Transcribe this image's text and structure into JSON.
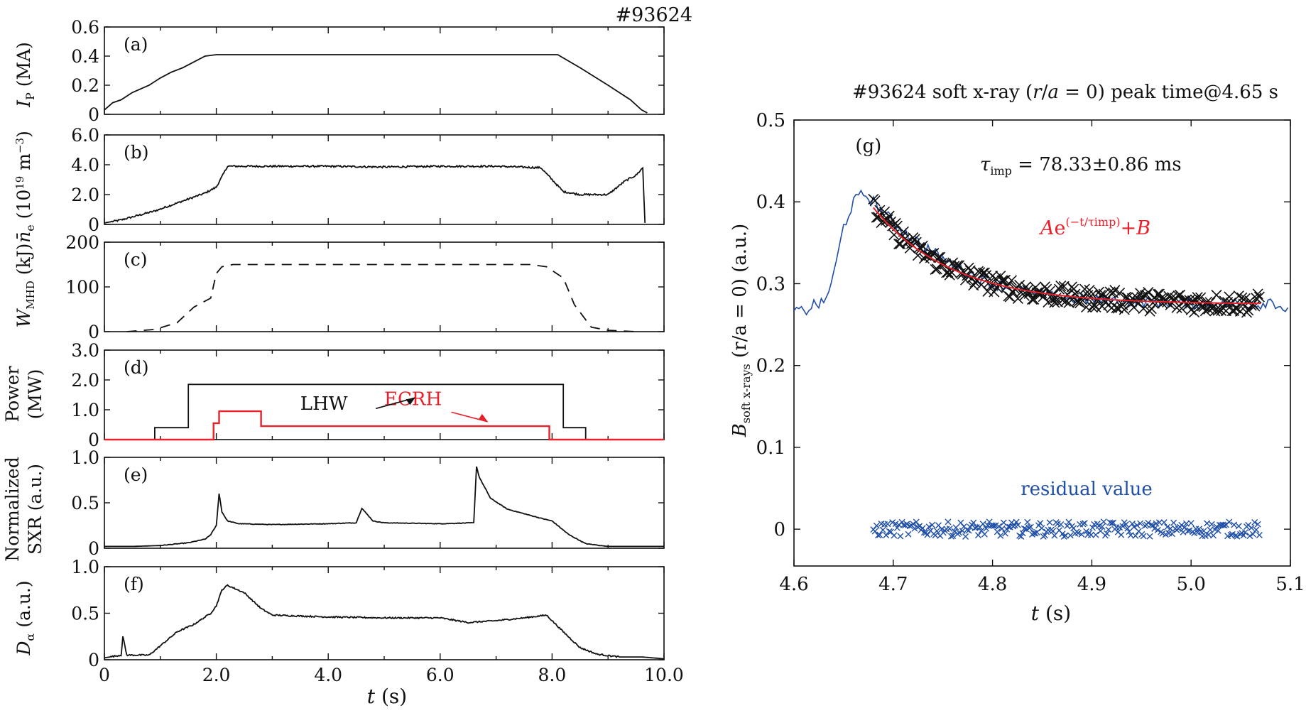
{
  "figure_label": "#93624",
  "colors": {
    "ink": "#111111",
    "ecrh": "#e8202a",
    "blue": "#1f4fa8"
  },
  "chart_data": [
    {
      "id": "a",
      "type": "line",
      "tag": "(a)",
      "ylabel": "I_P (MA)",
      "ylabel_main": "I",
      "ylabel_sub": "P",
      "ylabel_rest": " (MA)",
      "xlim": [
        0,
        10
      ],
      "ylim": [
        0,
        0.6
      ],
      "yticks": [
        "0",
        "0.2",
        "0.4",
        "0.6"
      ],
      "ytick_values": [
        0,
        0.2,
        0.4,
        0.6
      ],
      "series": [
        {
          "name": "I_P",
          "style": "solid",
          "x": [
            0,
            0.15,
            0.3,
            0.5,
            0.8,
            1.0,
            1.2,
            1.4,
            1.6,
            1.8,
            2.0,
            3.0,
            5.0,
            7.0,
            8.1,
            8.5,
            9.0,
            9.4,
            9.6,
            9.7
          ],
          "y": [
            0.03,
            0.08,
            0.1,
            0.15,
            0.2,
            0.25,
            0.29,
            0.32,
            0.36,
            0.4,
            0.41,
            0.41,
            0.41,
            0.41,
            0.41,
            0.32,
            0.2,
            0.1,
            0.03,
            0.01
          ]
        }
      ]
    },
    {
      "id": "b",
      "type": "line",
      "tag": "(b)",
      "ylabel": "n̄_e (10^19 m^-3)",
      "xlim": [
        0,
        10
      ],
      "ylim": [
        0,
        6
      ],
      "yticks": [
        "0",
        "2.0",
        "4.0",
        "6.0"
      ],
      "ytick_values": [
        0,
        2,
        4,
        6
      ],
      "series": [
        {
          "name": "n_e",
          "style": "solid",
          "x": [
            0,
            0.3,
            0.6,
            0.9,
            1.2,
            1.5,
            1.8,
            2.0,
            2.2,
            3.0,
            4.0,
            5.0,
            6.0,
            7.0,
            7.8,
            8.2,
            8.5,
            9.0,
            9.3,
            9.5,
            9.62,
            9.66
          ],
          "y": [
            0.1,
            0.3,
            0.6,
            0.9,
            1.3,
            1.7,
            2.1,
            2.5,
            3.9,
            3.9,
            3.9,
            3.85,
            3.9,
            3.9,
            3.8,
            2.2,
            2.0,
            2.0,
            2.9,
            3.3,
            3.8,
            0.1
          ]
        }
      ]
    },
    {
      "id": "c",
      "type": "line",
      "tag": "(c)",
      "ylabel": "W_MHD (kJ)",
      "xlim": [
        0,
        10
      ],
      "ylim": [
        0,
        200
      ],
      "yticks": [
        "0",
        "100",
        "200"
      ],
      "ytick_values": [
        0,
        100,
        200
      ],
      "series": [
        {
          "name": "W_MHD",
          "style": "dashed",
          "x": [
            0.4,
            0.9,
            1.3,
            1.6,
            1.9,
            2.0,
            2.1,
            2.3,
            3.0,
            4.0,
            5.0,
            6.0,
            7.0,
            7.6,
            7.9,
            8.2,
            8.4,
            8.7,
            9.0,
            9.5
          ],
          "y": [
            0,
            5,
            20,
            55,
            75,
            130,
            145,
            150,
            150,
            150,
            150,
            150,
            150,
            150,
            145,
            120,
            60,
            10,
            3,
            0
          ]
        }
      ]
    },
    {
      "id": "d",
      "type": "line",
      "tag": "(d)",
      "ylabel": "Power (MW)",
      "ylabel_line1": "Power",
      "ylabel_line2": "(MW)",
      "xlim": [
        0,
        10
      ],
      "ylim": [
        0,
        3
      ],
      "yticks": [
        "0",
        "1.0",
        "2.0",
        "3.0"
      ],
      "ytick_values": [
        0,
        1,
        2,
        3
      ],
      "annotations": [
        {
          "text": "LHW",
          "color": "#111111",
          "x": 3.5,
          "y": 1.0
        },
        {
          "text": "ECRH",
          "color": "#e8202a",
          "x": 5.0,
          "y": 1.15
        }
      ],
      "series": [
        {
          "name": "LHW",
          "style": "solid",
          "color": "#111111",
          "x": [
            0,
            0.9,
            0.9,
            1.5,
            1.5,
            5.0,
            8.2,
            8.2,
            8.6,
            8.6,
            10
          ],
          "y": [
            0,
            0,
            0.4,
            0.4,
            1.85,
            1.85,
            1.85,
            0.4,
            0.4,
            0,
            0
          ]
        },
        {
          "name": "ECRH",
          "style": "solid",
          "color": "#e8202a",
          "x": [
            0,
            1.95,
            1.95,
            2.05,
            2.05,
            2.8,
            2.8,
            7.95,
            7.95,
            10
          ],
          "y": [
            0,
            0,
            0.55,
            0.55,
            0.95,
            0.95,
            0.45,
            0.45,
            0,
            0
          ]
        }
      ]
    },
    {
      "id": "e",
      "type": "line",
      "tag": "(e)",
      "ylabel": "Normalized SXR (a.u.)",
      "ylabel_line1": "Normalized",
      "ylabel_line2": "SXR (a.u.)",
      "xlim": [
        0,
        10
      ],
      "ylim": [
        0,
        1
      ],
      "yticks": [
        "0",
        "0.5",
        "1.0"
      ],
      "ytick_values": [
        0,
        0.5,
        1
      ],
      "series": [
        {
          "name": "SXR",
          "style": "solid",
          "x": [
            0,
            0.5,
            1.0,
            1.5,
            1.8,
            1.9,
            2.0,
            2.05,
            2.1,
            2.2,
            2.4,
            3.0,
            4.0,
            4.5,
            4.6,
            4.8,
            5.0,
            6.0,
            6.6,
            6.65,
            6.7,
            6.9,
            7.2,
            7.8,
            8.0,
            8.3,
            8.6,
            9.0,
            10
          ],
          "y": [
            0.02,
            0.02,
            0.03,
            0.06,
            0.1,
            0.15,
            0.25,
            0.6,
            0.4,
            0.3,
            0.27,
            0.26,
            0.27,
            0.28,
            0.44,
            0.3,
            0.28,
            0.27,
            0.28,
            0.9,
            0.78,
            0.55,
            0.43,
            0.33,
            0.3,
            0.15,
            0.05,
            0.02,
            0.02
          ]
        }
      ]
    },
    {
      "id": "f",
      "type": "line",
      "tag": "(f)",
      "ylabel": "D_α (a.u.)",
      "xlim": [
        0,
        10
      ],
      "ylim": [
        0,
        1
      ],
      "yticks": [
        "0",
        "0.5",
        "1.0"
      ],
      "ytick_values": [
        0,
        0.5,
        1
      ],
      "xticks": [
        "0",
        "2.0",
        "4.0",
        "6.0",
        "8.0",
        "10.0"
      ],
      "xtick_values": [
        0,
        2,
        4,
        6,
        8,
        10
      ],
      "xlabel": "t (s)",
      "series": [
        {
          "name": "D_alpha",
          "style": "solid",
          "x": [
            0,
            0.3,
            0.33,
            0.4,
            0.8,
            1.0,
            1.3,
            1.6,
            1.9,
            2.0,
            2.1,
            2.2,
            2.5,
            2.8,
            3.0,
            4.0,
            5.0,
            6.0,
            6.5,
            7.0,
            7.5,
            7.9,
            8.2,
            8.5,
            8.8,
            9.2,
            9.6,
            10
          ],
          "y": [
            0.02,
            0.05,
            0.25,
            0.05,
            0.05,
            0.15,
            0.3,
            0.38,
            0.5,
            0.58,
            0.75,
            0.8,
            0.72,
            0.55,
            0.48,
            0.46,
            0.45,
            0.45,
            0.4,
            0.42,
            0.45,
            0.48,
            0.3,
            0.13,
            0.06,
            0.03,
            0.03,
            0.01
          ]
        }
      ]
    },
    {
      "id": "g",
      "type": "scatter",
      "tag": "(g)",
      "title": "#93624 soft x-ray (r/a = 0) peak time@4.65 s",
      "title_prefix": "#93624 soft x-ray (",
      "title_r": "r",
      "title_slash": "/",
      "title_a": "a",
      "title_eq": " = 0) peak time@4.65 s",
      "ylabel": "B_soft x-rays (r/a = 0) (a.u.)",
      "ylabel_B": "B",
      "ylabel_sub": "soft x-rays",
      "ylabel_paren": " (r/a = 0) (a.u.)",
      "xlabel": "t (s)",
      "xlim": [
        4.6,
        5.1
      ],
      "ylim": [
        -0.045,
        0.5
      ],
      "xticks": [
        "4.6",
        "4.7",
        "4.8",
        "4.9",
        "5.0",
        "5.1"
      ],
      "xtick_values": [
        4.6,
        4.7,
        4.8,
        4.9,
        5.0,
        5.1
      ],
      "yticks": [
        "0",
        "0.1",
        "0.2",
        "0.3",
        "0.4",
        "0.5"
      ],
      "ytick_values": [
        0,
        0.1,
        0.2,
        0.3,
        0.4,
        0.5
      ],
      "tau_label": "τimp = 78.33±0.86 ms",
      "tau_main": "τ",
      "tau_sub": "imp",
      "tau_rest": " = 78.33±0.86 ms",
      "fit_label": "Ae^(−t/τimp)+B",
      "fit_A": "A",
      "fit_e": "e",
      "fit_exp": "(−t/τimp)",
      "fit_plus": "+",
      "fit_B": "B",
      "residual_label": "residual value",
      "fit": {
        "A": 0.118,
        "B": 0.275,
        "tau_ms": 78.33,
        "t0": 4.68,
        "t_end": 5.07
      },
      "series": [
        {
          "name": "soft x-ray signal",
          "style": "line",
          "color": "#1f4fa8",
          "x": [
            4.6,
            4.61,
            4.62,
            4.63,
            4.64,
            4.65,
            4.66,
            4.67,
            4.675,
            4.68,
            4.7,
            4.72,
            4.75,
            4.78,
            4.8,
            4.85,
            4.9,
            4.95,
            5.0,
            5.05,
            5.07,
            5.08,
            5.1
          ],
          "y": [
            0.268,
            0.265,
            0.275,
            0.275,
            0.31,
            0.37,
            0.4,
            0.41,
            0.405,
            0.4,
            0.375,
            0.355,
            0.33,
            0.31,
            0.3,
            0.285,
            0.28,
            0.278,
            0.276,
            0.275,
            0.275,
            0.28,
            0.265
          ]
        },
        {
          "name": "measured (x)",
          "style": "markers",
          "color": "#111111",
          "x_range": [
            4.68,
            5.07
          ],
          "noise": 0.012
        },
        {
          "name": "residual value",
          "style": "markers",
          "color": "#1f4fa8",
          "x_range": [
            4.68,
            5.07
          ],
          "noise": 0.009
        }
      ]
    }
  ]
}
